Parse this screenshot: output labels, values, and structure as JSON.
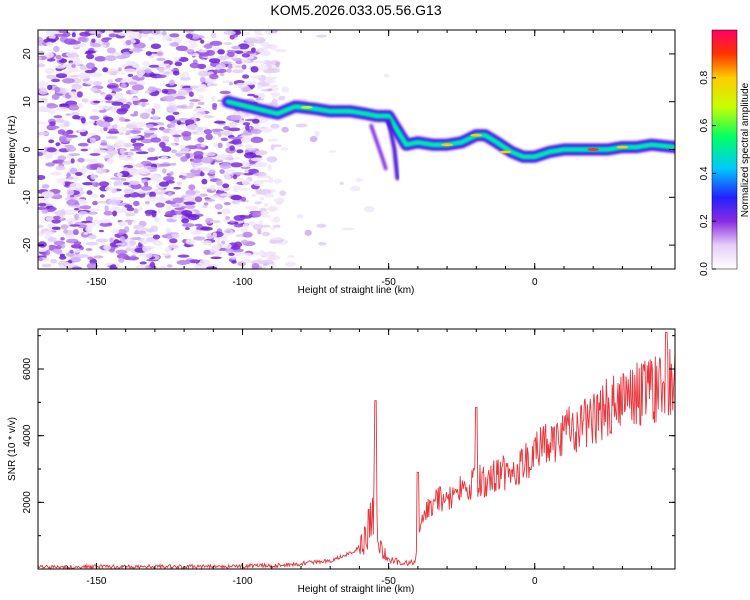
{
  "title": "KOM5.2026.033.05.56.G13",
  "chart_data": [
    {
      "type": "heatmap",
      "xlabel": "Height of straight line (km)",
      "ylabel": "Frequency (Hz)",
      "xlim": [
        -170,
        48
      ],
      "ylim": [
        -25,
        25
      ],
      "x_ticks": [
        -150,
        -100,
        -50,
        0
      ],
      "y_ticks": [
        -20,
        -10,
        0,
        10,
        20
      ],
      "ridge": {
        "x": [
          -105,
          -95,
          -88,
          -82,
          -75,
          -70,
          -63,
          -58,
          -54,
          -50,
          -47,
          -44,
          -40,
          -35,
          -30,
          -25,
          -20,
          -17,
          -13,
          -8,
          -4,
          0,
          5,
          10,
          15,
          20,
          25,
          30,
          35,
          40,
          48
        ],
        "freq": [
          10,
          8.5,
          7.5,
          9,
          8.5,
          8,
          8,
          7.5,
          7,
          7,
          4,
          1,
          1.5,
          1,
          1,
          1.5,
          3,
          3,
          1.5,
          -0.5,
          -1.5,
          -1.5,
          -0.5,
          0,
          0,
          0,
          0,
          0.5,
          0.5,
          1,
          0.5
        ]
      },
      "colorbar": {
        "label": "Normalized spectral amplitude",
        "ticks": [
          "0.0",
          "0.2",
          "0.4",
          "0.6",
          "0.8"
        ],
        "range": [
          0,
          1
        ]
      }
    },
    {
      "type": "line",
      "xlabel": "Height of straight line (km)",
      "ylabel": "SNR (10 * v/v)",
      "xlim": [
        -170,
        48
      ],
      "ylim": [
        0,
        7200
      ],
      "x_ticks": [
        -150,
        -100,
        -50,
        0
      ],
      "y_ticks": [
        2000,
        4000,
        6000
      ],
      "color": "#e8343a",
      "envelope": {
        "x": [
          -170,
          -100,
          -85,
          -70,
          -62,
          -58,
          -55,
          -53,
          -50,
          -45,
          -41,
          -39,
          -35,
          -30,
          -25,
          -20,
          -15,
          -10,
          -5,
          0,
          5,
          10,
          15,
          20,
          25,
          30,
          35,
          40,
          45,
          48
        ],
        "y": [
          60,
          80,
          120,
          250,
          500,
          900,
          2000,
          700,
          300,
          150,
          250,
          1800,
          2200,
          2400,
          2700,
          2900,
          3000,
          3200,
          3500,
          3900,
          4200,
          4500,
          4800,
          5100,
          5400,
          5600,
          5800,
          6000,
          6100,
          6200
        ]
      },
      "spikes": [
        {
          "x": -54.5,
          "y": 5050
        },
        {
          "x": -40,
          "y": 2900
        },
        {
          "x": -20,
          "y": 4850
        },
        {
          "x": 45,
          "y": 7100
        }
      ]
    }
  ]
}
